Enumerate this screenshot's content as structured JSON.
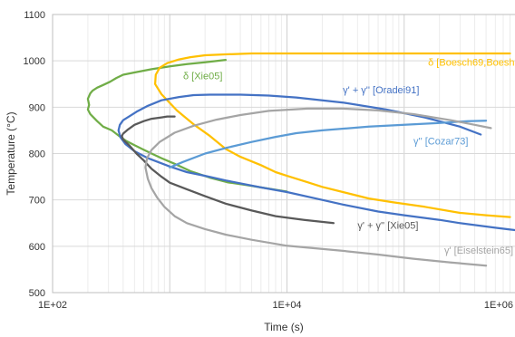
{
  "chart_data": {
    "type": "line",
    "xlabel": "Time (s)",
    "ylabel": "Temperature (°C)",
    "x_scale": "log",
    "xlim": [
      100,
      1000000
    ],
    "ylim": [
      500,
      1100
    ],
    "x_ticks": [
      {
        "value": 100,
        "label": "1E+02"
      },
      {
        "value": 10000,
        "label": "1E+04"
      },
      {
        "value": 1000000,
        "label": "1E+06"
      }
    ],
    "y_ticks": [
      500,
      600,
      700,
      800,
      900,
      1000,
      1100
    ],
    "grid": true,
    "series": [
      {
        "name": "δ [Xie05]",
        "color": "#70ad47",
        "points": [
          [
            3000,
            1002
          ],
          [
            2000,
            997
          ],
          [
            1400,
            993
          ],
          [
            1000,
            988
          ],
          [
            700,
            982
          ],
          [
            500,
            975
          ],
          [
            400,
            970
          ],
          [
            350,
            963
          ],
          [
            310,
            955
          ],
          [
            270,
            948
          ],
          [
            240,
            942
          ],
          [
            220,
            936
          ],
          [
            210,
            930
          ],
          [
            200,
            918
          ],
          [
            205,
            905
          ],
          [
            200,
            895
          ],
          [
            210,
            885
          ],
          [
            240,
            870
          ],
          [
            270,
            858
          ],
          [
            320,
            850
          ],
          [
            370,
            838
          ],
          [
            420,
            828
          ],
          [
            500,
            818
          ],
          [
            600,
            808
          ],
          [
            700,
            800
          ],
          [
            850,
            790
          ],
          [
            1100,
            778
          ],
          [
            1500,
            762
          ],
          [
            2200,
            748
          ],
          [
            3100,
            738
          ],
          [
            4500,
            732
          ],
          [
            10000,
            718
          ]
        ]
      },
      {
        "name": "δ [Boesch69,Boesh68]",
        "color": "#ffc000",
        "points": [
          [
            800000,
            663
          ],
          [
            500000,
            667
          ],
          [
            300000,
            672
          ],
          [
            150000,
            685
          ],
          [
            80000,
            695
          ],
          [
            50000,
            703
          ],
          [
            30000,
            717
          ],
          [
            20000,
            728
          ],
          [
            15000,
            738
          ],
          [
            10000,
            752
          ],
          [
            8000,
            760
          ],
          [
            6000,
            775
          ],
          [
            4000,
            793
          ],
          [
            3000,
            810
          ],
          [
            2200,
            838
          ],
          [
            1600,
            863
          ],
          [
            1150,
            893
          ],
          [
            850,
            928
          ],
          [
            750,
            950
          ],
          [
            760,
            970
          ],
          [
            820,
            985
          ],
          [
            950,
            995
          ],
          [
            1200,
            1003
          ],
          [
            1500,
            1008
          ],
          [
            2000,
            1012
          ],
          [
            3000,
            1014
          ],
          [
            5000,
            1016
          ],
          [
            10000,
            1016
          ],
          [
            50000,
            1016
          ],
          [
            100000,
            1016
          ],
          [
            300000,
            1016
          ],
          [
            800000,
            1016
          ]
        ]
      },
      {
        "name": "γ' + γ'' [Oradei91]",
        "color": "#4472c4",
        "points": [
          [
            1000000,
            633
          ],
          [
            600000,
            640
          ],
          [
            300000,
            650
          ],
          [
            200000,
            657
          ],
          [
            100000,
            667
          ],
          [
            60000,
            675
          ],
          [
            30000,
            690
          ],
          [
            20000,
            700
          ],
          [
            10000,
            717
          ],
          [
            6000,
            727
          ],
          [
            3000,
            742
          ],
          [
            2000,
            752
          ],
          [
            1400,
            760
          ],
          [
            1000,
            772
          ],
          [
            650,
            790
          ],
          [
            500,
            805
          ],
          [
            420,
            820
          ],
          [
            380,
            835
          ],
          [
            365,
            850
          ],
          [
            375,
            862
          ],
          [
            400,
            872
          ],
          [
            450,
            880
          ],
          [
            520,
            890
          ],
          [
            650,
            903
          ],
          [
            850,
            915
          ],
          [
            1200,
            922
          ],
          [
            1600,
            926
          ],
          [
            2200,
            927
          ],
          [
            4000,
            927
          ],
          [
            7000,
            925
          ],
          [
            12000,
            921
          ],
          [
            30000,
            910
          ],
          [
            70000,
            895
          ],
          [
            150000,
            878
          ],
          [
            300000,
            858
          ],
          [
            450000,
            841
          ]
        ]
      },
      {
        "name": "γ'' [Cozar73]",
        "color": "#5b9bd5",
        "points": [
          [
            1000,
            770
          ],
          [
            1300,
            782
          ],
          [
            2000,
            800
          ],
          [
            3000,
            812
          ],
          [
            5000,
            825
          ],
          [
            8000,
            836
          ],
          [
            12000,
            844
          ],
          [
            20000,
            850
          ],
          [
            50000,
            858
          ],
          [
            100000,
            862
          ],
          [
            200000,
            866
          ],
          [
            350000,
            870
          ],
          [
            500000,
            871
          ]
        ]
      },
      {
        "name": "γ' + γ'' [Xie05]",
        "color": "#595959",
        "points": [
          [
            1100,
            880
          ],
          [
            950,
            880
          ],
          [
            850,
            878
          ],
          [
            700,
            875
          ],
          [
            600,
            870
          ],
          [
            500,
            862
          ],
          [
            440,
            852
          ],
          [
            400,
            843
          ],
          [
            390,
            838
          ],
          [
            400,
            830
          ],
          [
            450,
            818
          ],
          [
            520,
            800
          ],
          [
            600,
            785
          ],
          [
            700,
            767
          ],
          [
            850,
            750
          ],
          [
            1000,
            737
          ],
          [
            1400,
            723
          ],
          [
            2000,
            708
          ],
          [
            3000,
            692
          ],
          [
            5000,
            677
          ],
          [
            8000,
            665
          ],
          [
            14000,
            657
          ],
          [
            25000,
            650
          ]
        ]
      },
      {
        "name": "γ' [Eiselstein65]",
        "color": "#a5a5a5",
        "points": [
          [
            500000,
            558
          ],
          [
            250000,
            565
          ],
          [
            120000,
            573
          ],
          [
            60000,
            582
          ],
          [
            30000,
            590
          ],
          [
            10000,
            601
          ],
          [
            5000,
            614
          ],
          [
            3000,
            625
          ],
          [
            2000,
            637
          ],
          [
            1400,
            650
          ],
          [
            1100,
            665
          ],
          [
            900,
            685
          ],
          [
            780,
            705
          ],
          [
            700,
            725
          ],
          [
            650,
            745
          ],
          [
            620,
            770
          ],
          [
            640,
            790
          ],
          [
            700,
            808
          ],
          [
            820,
            825
          ],
          [
            1100,
            845
          ],
          [
            1600,
            860
          ],
          [
            2500,
            873
          ],
          [
            4000,
            883
          ],
          [
            7000,
            892
          ],
          [
            15000,
            897
          ],
          [
            30000,
            897
          ],
          [
            60000,
            893
          ],
          [
            120000,
            885
          ],
          [
            250000,
            872
          ],
          [
            400000,
            862
          ],
          [
            550000,
            855
          ]
        ]
      }
    ],
    "annotations": [
      {
        "text": "δ [Xie05]",
        "x": 1300,
        "y": 960,
        "color": "#70ad47"
      },
      {
        "text": "δ [Boesch69,Boesh68]",
        "x": 160000,
        "y": 990,
        "color": "#ffc000"
      },
      {
        "text": "γ' + γ'' [Oradei91]",
        "x": 30000,
        "y": 930,
        "color": "#4472c4"
      },
      {
        "text": "γ'' [Cozar73]",
        "x": 120000,
        "y": 820,
        "color": "#5b9bd5"
      },
      {
        "text": "γ' + γ'' [Xie05]",
        "x": 40000,
        "y": 638,
        "color": "#595959"
      },
      {
        "text": "γ' [Eiselstein65]",
        "x": 220000,
        "y": 584,
        "color": "#a5a5a5"
      }
    ]
  }
}
